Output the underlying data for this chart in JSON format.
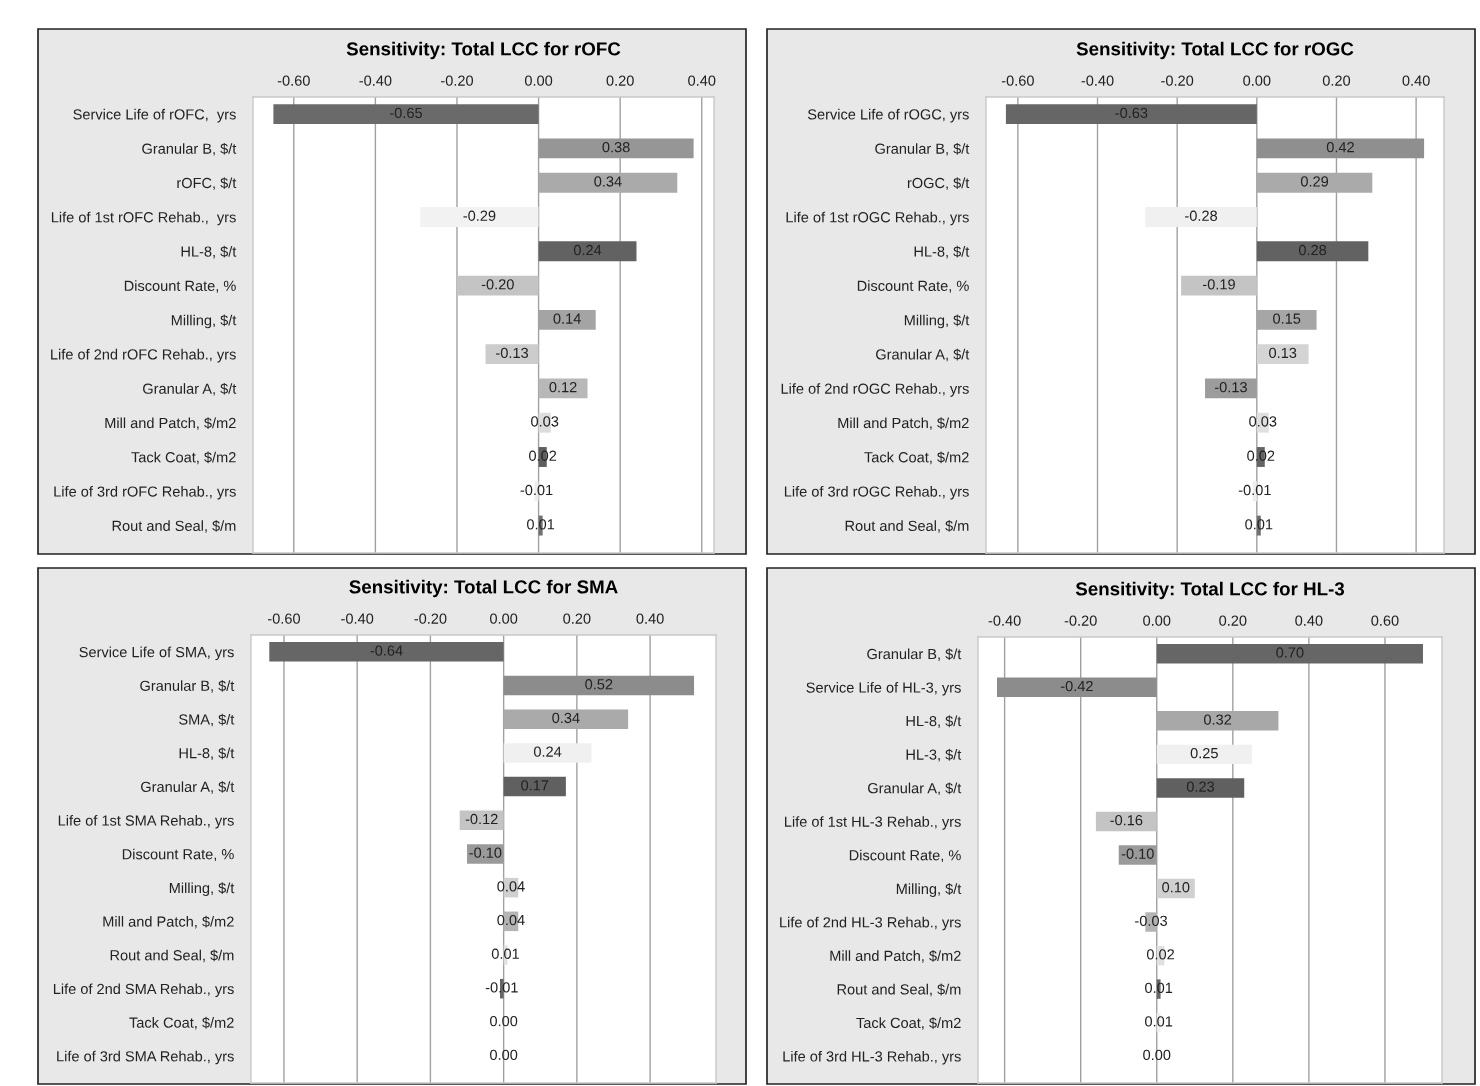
{
  "chart_data": [
    {
      "type": "bar",
      "orientation": "horizontal",
      "title": "Sensitivity: Total LCC for rOFC",
      "categories": [
        "Service Life of rOFC,  yrs",
        "Granular B, $/t",
        "rOFC, $/t",
        "Life of 1st rOFC Rehab.,  yrs",
        "HL-8, $/t",
        "Discount Rate, %",
        "Milling, $/t",
        "Life of 2nd rOFC Rehab., yrs",
        "Granular A, $/t",
        "Mill and Patch, $/m2",
        "Tack Coat, $/m2",
        "Life of 3rd rOFC Rehab., yrs",
        "Rout and Seal, $/m"
      ],
      "values": [
        -0.65,
        0.38,
        0.34,
        -0.29,
        0.24,
        -0.2,
        0.14,
        -0.13,
        0.12,
        0.03,
        0.02,
        -0.01,
        0.01
      ],
      "value_labels": [
        "-0.65",
        "0.38",
        "0.34",
        "-0.29",
        "0.24",
        "-0.20",
        "0.14",
        "-0.13",
        "0.12",
        "0.03",
        "0.02",
        "-0.01",
        "0.01"
      ],
      "colors": [
        "#6a6a6a",
        "#969696",
        "#aaaaaa",
        "#f2f2f2",
        "#626262",
        "#c4c4c4",
        "#a4a4a4",
        "#cccccc",
        "#b8b8b8",
        "#dddddd",
        "#5e5e5e",
        "#eeeeee",
        "#707070"
      ],
      "xlim": [
        -0.7,
        0.43
      ],
      "xticks": [
        {
          "value": -0.6,
          "label": "-0.60"
        },
        {
          "value": -0.4,
          "label": "-0.40"
        },
        {
          "value": -0.2,
          "label": "-0.20"
        },
        {
          "value": 0,
          "label": "0.00"
        },
        {
          "value": 0.2,
          "label": "0.20"
        },
        {
          "value": 0.4,
          "label": "0.40"
        }
      ],
      "grid": "x"
    },
    {
      "type": "bar",
      "orientation": "horizontal",
      "title": "Sensitivity: Total LCC for rOGC",
      "categories": [
        "Service Life of rOGC, yrs",
        "Granular B, $/t",
        "rOGC, $/t",
        "Life of 1st rOGC Rehab., yrs",
        "HL-8, $/t",
        "Discount Rate, %",
        "Milling, $/t",
        "Granular A, $/t",
        "Life of 2nd rOGC Rehab., yrs",
        "Mill and Patch, $/m2",
        "Tack Coat, $/m2",
        "Life of 3rd rOGC Rehab., yrs",
        "Rout and Seal, $/m"
      ],
      "values": [
        -0.63,
        0.42,
        0.29,
        -0.28,
        0.28,
        -0.19,
        0.15,
        0.13,
        -0.13,
        0.03,
        0.02,
        -0.01,
        0.01
      ],
      "value_labels": [
        "-0.63",
        "0.42",
        "0.29",
        "-0.28",
        "0.28",
        "-0.19",
        "0.15",
        "0.13",
        "-0.13",
        "0.03",
        "0.02",
        "-0.01",
        "0.01"
      ],
      "colors": [
        "#666666",
        "#8f8f8f",
        "#aaaaaa",
        "#f0f0f0",
        "#626262",
        "#c4c4c4",
        "#a6a6a6",
        "#d4d4d4",
        "#9c9c9c",
        "#e0e0e0",
        "#646464",
        "#eeeeee",
        "#707070"
      ],
      "xlim": [
        -0.68,
        0.47
      ],
      "xticks": [
        {
          "value": -0.6,
          "label": "-0.60"
        },
        {
          "value": -0.4,
          "label": "-0.40"
        },
        {
          "value": -0.2,
          "label": "-0.20"
        },
        {
          "value": 0,
          "label": "0.00"
        },
        {
          "value": 0.2,
          "label": "0.20"
        },
        {
          "value": 0.4,
          "label": "0.40"
        }
      ],
      "grid": "x"
    },
    {
      "type": "bar",
      "orientation": "horizontal",
      "title": "Sensitivity: Total LCC for SMA",
      "categories": [
        "Service Life of SMA, yrs",
        "Granular B, $/t",
        "SMA, $/t",
        "HL-8, $/t",
        "Granular A, $/t",
        "Life of 1st SMA Rehab., yrs",
        "Discount Rate, %",
        "Milling, $/t",
        "Mill and Patch, $/m2",
        "Rout and Seal, $/m",
        "Life of 2nd SMA Rehab., yrs",
        "Tack Coat, $/m2",
        "Life of 3rd SMA Rehab., yrs"
      ],
      "values": [
        -0.64,
        0.52,
        0.34,
        0.24,
        0.17,
        -0.12,
        -0.1,
        0.04,
        0.04,
        0.01,
        -0.01,
        0.0,
        0.0
      ],
      "value_labels": [
        "-0.64",
        "0.52",
        "0.34",
        "0.24",
        "0.17",
        "-0.12",
        "-0.10",
        "0.04",
        "0.04",
        "0.01",
        "-0.01",
        "0.00",
        "0.00"
      ],
      "colors": [
        "#666666",
        "#8c8c8c",
        "#aaaaaa",
        "#f0f0f0",
        "#606060",
        "#c4c4c4",
        "#9a9a9a",
        "#d0d0d0",
        "#b4b4b4",
        "#e0e0e0",
        "#666666",
        "#eeeeee",
        "#eeeeee"
      ],
      "xlim": [
        -0.69,
        0.58
      ],
      "xticks": [
        {
          "value": -0.6,
          "label": "-0.60"
        },
        {
          "value": -0.4,
          "label": "-0.40"
        },
        {
          "value": -0.2,
          "label": "-0.20"
        },
        {
          "value": 0,
          "label": "0.00"
        },
        {
          "value": 0.2,
          "label": "0.20"
        },
        {
          "value": 0.4,
          "label": "0.40"
        }
      ],
      "grid": "x"
    },
    {
      "type": "bar",
      "orientation": "horizontal",
      "title": "Sensitivity: Total LCC for HL-3",
      "categories": [
        "Granular B, $/t",
        "Service Life of HL-3, yrs",
        "HL-8, $/t",
        "HL-3, $/t",
        "Granular A, $/t",
        "Life of 1st HL-3 Rehab., yrs",
        "Discount Rate, %",
        "Milling, $/t",
        "Life of 2nd HL-3 Rehab., yrs",
        "Mill and Patch, $/m2",
        "Rout and Seal, $/m",
        "Tack Coat, $/m2",
        "Life of 3rd HL-3 Rehab., yrs"
      ],
      "values": [
        0.7,
        -0.42,
        0.32,
        0.25,
        0.23,
        -0.16,
        -0.1,
        0.1,
        -0.03,
        0.02,
        0.01,
        0.01,
        0.0
      ],
      "value_labels": [
        "0.70",
        "-0.42",
        "0.32",
        "0.25",
        "0.23",
        "-0.16",
        "-0.10",
        "0.10",
        "-0.03",
        "0.02",
        "0.01",
        "0.01",
        "0.00"
      ],
      "colors": [
        "#666666",
        "#8c8c8c",
        "#a8a8a8",
        "#f0f0f0",
        "#606060",
        "#c4c4c4",
        "#9a9a9a",
        "#d0d0d0",
        "#b4b4b4",
        "#e0e0e0",
        "#666666",
        "#eeeeee",
        "#eeeeee"
      ],
      "xlim": [
        -0.47,
        0.75
      ],
      "xticks": [
        {
          "value": -0.4,
          "label": "-0.40"
        },
        {
          "value": -0.2,
          "label": "-0.20"
        },
        {
          "value": 0,
          "label": "0.00"
        },
        {
          "value": 0.2,
          "label": "0.20"
        },
        {
          "value": 0.4,
          "label": "0.40"
        },
        {
          "value": 0.6,
          "label": "0.60"
        }
      ],
      "grid": "x"
    }
  ]
}
